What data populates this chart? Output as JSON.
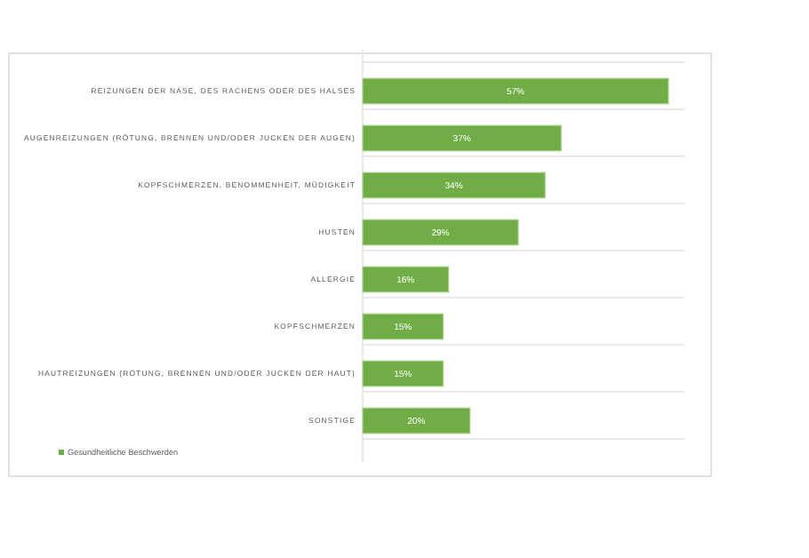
{
  "chart_data": {
    "type": "bar",
    "orientation": "horizontal",
    "categories": [
      "REIZUNGEN DER NASE, DES RACHENS ODER DES HALSES",
      "AUGENREIZUNGEN (RÖTUNG, BRENNEN UND/ODER JUCKEN DER AUGEN)",
      "KOPFSCHMERZEN, BENOMMENHEIT, MÜDIGKEIT",
      "HUSTEN",
      "ALLERGIE",
      "KOPFSCHMERZEN",
      "HAUTREIZUNGEN (RÖTUNG, BRENNEN UND/ODER JUCKEN DER HAUT)",
      "SONSTIGE"
    ],
    "series": [
      {
        "name": "Gesundheitliche Beschwerden",
        "color": "#70ad47",
        "values": [
          57,
          37,
          34,
          29,
          16,
          15,
          15,
          20
        ],
        "value_labels": [
          "57%",
          "37%",
          "34%",
          "29%",
          "16%",
          "15%",
          "15%",
          "20%"
        ]
      }
    ],
    "xlim": [
      0,
      60
    ],
    "grid": "y",
    "legend": "bottom left",
    "tick_labels": "y"
  }
}
